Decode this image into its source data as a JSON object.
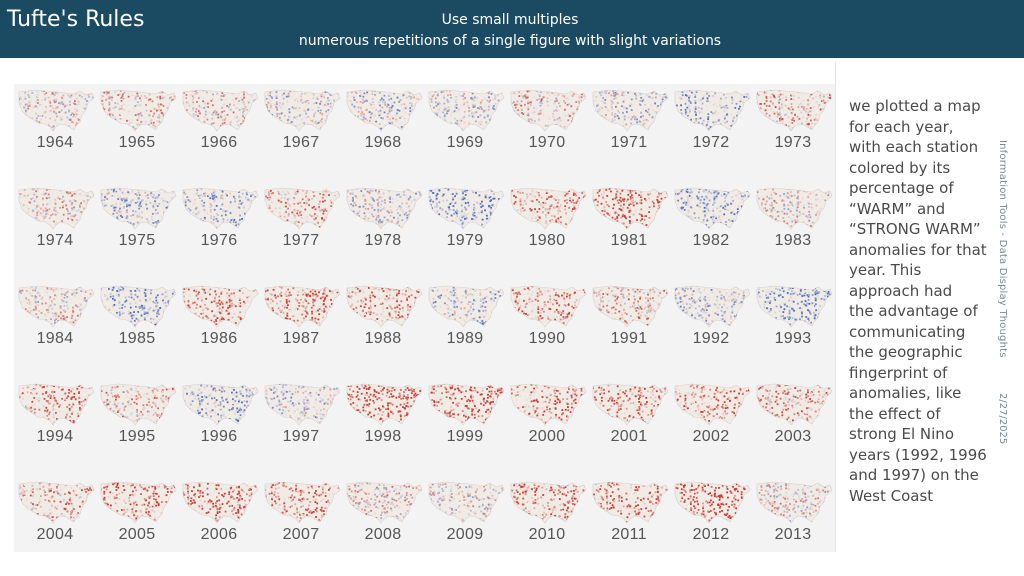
{
  "header": {
    "title": "Tufte's Rules",
    "subtitle_line1": "Use small multiples",
    "subtitle_line2": "numerous repetitions of a single figure with slight variations"
  },
  "description": "we plotted a map\nfor each year,\nwith each station\ncolored by its\npercentage of\n“WARM” and\n“STRONG WARM”\nanomalies for that\nyear. This\napproach had\nthe advantage of\ncommunicating\nthe geographic\nfingerprint of\nanomalies, like\nthe effect of\nstrong El Nino\nyears (1992, 1996\nand 1997) on the\nWest Coast",
  "footer": {
    "source": "Information Tools - Data Display Thoughts",
    "date": "2/27/2025"
  },
  "colors": {
    "header_bg": "#1b4a63",
    "warm": "#c0392b",
    "cool": "#4a6fc0",
    "neutral": "#ebe2dc"
  },
  "maps": [
    {
      "year": "1964",
      "warmth": 0.05
    },
    {
      "year": "1965",
      "warmth": 0.15
    },
    {
      "year": "1966",
      "warmth": 0.1
    },
    {
      "year": "1967",
      "warmth": -0.1
    },
    {
      "year": "1968",
      "warmth": -0.15
    },
    {
      "year": "1969",
      "warmth": -0.1
    },
    {
      "year": "1970",
      "warmth": 0.15
    },
    {
      "year": "1971",
      "warmth": -0.1
    },
    {
      "year": "1972",
      "warmth": -0.3
    },
    {
      "year": "1973",
      "warmth": 0.25
    },
    {
      "year": "1974",
      "warmth": 0.1
    },
    {
      "year": "1975",
      "warmth": -0.2
    },
    {
      "year": "1976",
      "warmth": -0.25
    },
    {
      "year": "1977",
      "warmth": 0.25
    },
    {
      "year": "1978",
      "warmth": -0.1
    },
    {
      "year": "1979",
      "warmth": -0.45
    },
    {
      "year": "1980",
      "warmth": 0.35
    },
    {
      "year": "1981",
      "warmth": 0.55
    },
    {
      "year": "1982",
      "warmth": -0.3
    },
    {
      "year": "1983",
      "warmth": 0.05
    },
    {
      "year": "1984",
      "warmth": 0.05
    },
    {
      "year": "1985",
      "warmth": -0.35
    },
    {
      "year": "1986",
      "warmth": 0.35
    },
    {
      "year": "1987",
      "warmth": 0.5
    },
    {
      "year": "1988",
      "warmth": 0.4
    },
    {
      "year": "1989",
      "warmth": -0.2
    },
    {
      "year": "1990",
      "warmth": 0.35
    },
    {
      "year": "1991",
      "warmth": 0.2
    },
    {
      "year": "1992",
      "warmth": -0.2
    },
    {
      "year": "1993",
      "warmth": -0.4
    },
    {
      "year": "1994",
      "warmth": 0.35
    },
    {
      "year": "1995",
      "warmth": 0.2
    },
    {
      "year": "1996",
      "warmth": -0.3
    },
    {
      "year": "1997",
      "warmth": -0.15
    },
    {
      "year": "1998",
      "warmth": 0.7
    },
    {
      "year": "1999",
      "warmth": 0.6
    },
    {
      "year": "2000",
      "warmth": 0.45
    },
    {
      "year": "2001",
      "warmth": 0.45
    },
    {
      "year": "2002",
      "warmth": 0.4
    },
    {
      "year": "2003",
      "warmth": 0.3
    },
    {
      "year": "2004",
      "warmth": 0.25
    },
    {
      "year": "2005",
      "warmth": 0.5
    },
    {
      "year": "2006",
      "warmth": 0.6
    },
    {
      "year": "2007",
      "warmth": 0.45
    },
    {
      "year": "2008",
      "warmth": 0.1
    },
    {
      "year": "2009",
      "warmth": 0.0
    },
    {
      "year": "2010",
      "warmth": 0.45
    },
    {
      "year": "2011",
      "warmth": 0.45
    },
    {
      "year": "2012",
      "warmth": 0.75
    },
    {
      "year": "2013",
      "warmth": 0.05
    }
  ]
}
